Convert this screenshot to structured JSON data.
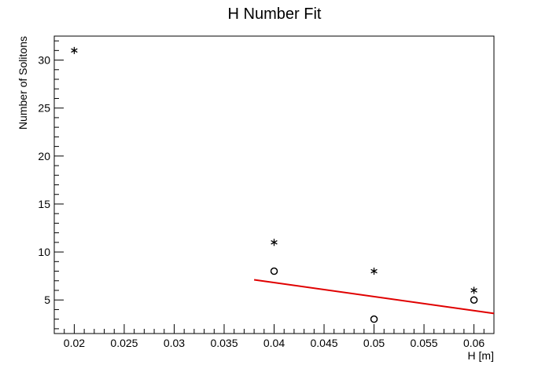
{
  "chart_data": {
    "type": "scatter",
    "title": "H Number Fit",
    "xlabel": "H [m]",
    "ylabel": "Number of Solitons",
    "xlim": [
      0.018,
      0.062
    ],
    "ylim": [
      1.5,
      32.5
    ],
    "x_ticks": [
      0.02,
      0.025,
      0.03,
      0.035,
      0.04,
      0.045,
      0.05,
      0.055,
      0.06
    ],
    "x_tick_labels": [
      "0.02",
      "0.025",
      "0.03",
      "0.035",
      "0.04",
      "0.045",
      "0.05",
      "0.055",
      "0.06"
    ],
    "y_ticks": [
      5,
      10,
      15,
      20,
      25,
      30
    ],
    "y_tick_labels": [
      "5",
      "10",
      "15",
      "20",
      "25",
      "30"
    ],
    "grid": false,
    "series": [
      {
        "marker": "star",
        "color": "#000000",
        "points": [
          {
            "x": 0.02,
            "y": 31
          },
          {
            "x": 0.04,
            "y": 11
          },
          {
            "x": 0.05,
            "y": 8
          },
          {
            "x": 0.06,
            "y": 6
          }
        ]
      },
      {
        "marker": "open-circle",
        "color": "#000000",
        "points": [
          {
            "x": 0.04,
            "y": 8
          },
          {
            "x": 0.05,
            "y": 3
          },
          {
            "x": 0.06,
            "y": 5
          }
        ]
      }
    ],
    "fit_line": {
      "color": "#e00000",
      "x": [
        0.038,
        0.062
      ],
      "y": [
        7.1,
        3.6
      ]
    }
  }
}
